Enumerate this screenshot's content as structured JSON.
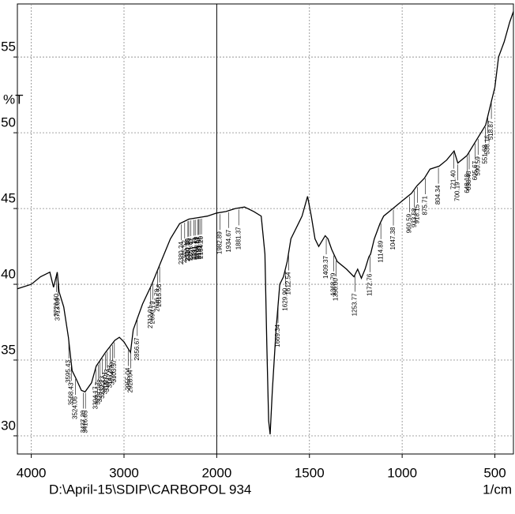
{
  "chart_data": {
    "type": "line",
    "y_label": "%T",
    "file_label": "D:\\April-15\\SDIP\\CARBOPOL 934",
    "x_unit_label": "1/cm",
    "xlim": [
      4150,
      400
    ],
    "x_scale_break": 2000,
    "x_scale_ratio": 2,
    "ylim": [
      28.8,
      58.5
    ],
    "xticks": [
      4000,
      3000,
      2000,
      1500,
      1000,
      500
    ],
    "yticks": [
      30,
      35,
      40,
      45,
      50,
      55
    ],
    "grid": true,
    "series": [
      {
        "color": "#000000",
        "x": [
          4150,
          4000,
          3900,
          3800,
          3760,
          3720,
          3700,
          3650,
          3600,
          3560,
          3520,
          3460,
          3420,
          3350,
          3300,
          3200,
          3100,
          3050,
          3000,
          2960,
          2930,
          2900,
          2800,
          2700,
          2600,
          2500,
          2400,
          2300,
          2200,
          2100,
          2000,
          1950,
          1900,
          1850,
          1800,
          1760,
          1740,
          1730,
          1720,
          1712,
          1700,
          1680,
          1660,
          1640,
          1620,
          1600,
          1580,
          1560,
          1540,
          1510,
          1490,
          1470,
          1450,
          1415,
          1400,
          1380,
          1350,
          1300,
          1260,
          1240,
          1220,
          1200,
          1180,
          1170,
          1150,
          1120,
          1100,
          1050,
          1000,
          950,
          920,
          880,
          850,
          800,
          760,
          720,
          700,
          650,
          600,
          550,
          520,
          500,
          480,
          450,
          420,
          400
        ],
        "values": [
          39.7,
          40.0,
          40.5,
          40.8,
          39.8,
          40.8,
          39.5,
          38.5,
          36.5,
          34.3,
          33.8,
          33.0,
          32.9,
          33.5,
          34.6,
          35.5,
          36.3,
          36.5,
          36.2,
          35.8,
          35.5,
          37.0,
          38.7,
          40.0,
          41.5,
          43.0,
          44.0,
          44.3,
          44.4,
          44.5,
          44.7,
          44.8,
          45.0,
          45.1,
          44.8,
          44.5,
          42.0,
          36.0,
          31.0,
          30.1,
          33.0,
          37.0,
          40.0,
          40.5,
          41.5,
          43.0,
          43.5,
          44.0,
          44.5,
          45.8,
          44.5,
          43.0,
          42.5,
          43.2,
          43.0,
          42.3,
          41.5,
          41.0,
          40.5,
          41.0,
          40.4,
          41.0,
          41.8,
          42.0,
          43.0,
          44.0,
          44.5,
          45.0,
          45.5,
          46.0,
          46.5,
          47.0,
          47.6,
          47.8,
          48.2,
          48.8,
          48.0,
          48.5,
          49.5,
          50.5,
          52.0,
          53.0,
          55.0,
          56.0,
          57.3,
          58.0
        ]
      }
    ],
    "peak_labels": [
      {
        "value": 3726.6,
        "label": "3726.60"
      },
      {
        "value": 3713.09,
        "label": "3713.09"
      },
      {
        "value": 3595.43,
        "label": "3595.43"
      },
      {
        "value": 3568.43,
        "label": "3568.43"
      },
      {
        "value": 3524.06,
        "label": "3524.06"
      },
      {
        "value": 3437.2,
        "label": "3437.20"
      },
      {
        "value": 3416.05,
        "label": "3416.05"
      },
      {
        "value": 3304.17,
        "label": "3304.17"
      },
      {
        "value": 3277.17,
        "label": "3277.17"
      },
      {
        "value": 3257.88,
        "label": "3257.88"
      },
      {
        "value": 3232.23,
        "label": "3232.23"
      },
      {
        "value": 3200.01,
        "label": "3200.01"
      },
      {
        "value": 3180.73,
        "label": "3180.73"
      },
      {
        "value": 3147.93,
        "label": "3147.93"
      },
      {
        "value": 3124.79,
        "label": "3124.79"
      },
      {
        "value": 3103.57,
        "label": "3103.57"
      },
      {
        "value": 2955.04,
        "label": "2955.04"
      },
      {
        "value": 2928.04,
        "label": "2928.04"
      },
      {
        "value": 2856.67,
        "label": "2856.67"
      },
      {
        "value": 2712.01,
        "label": "2712.01"
      },
      {
        "value": 2690.79,
        "label": "2690.79"
      },
      {
        "value": 2636.78,
        "label": "2636.78"
      },
      {
        "value": 2615.56,
        "label": "2615.56"
      },
      {
        "value": 2380.24,
        "label": "2380.24"
      },
      {
        "value": 2345.52,
        "label": "2345.52"
      },
      {
        "value": 2310.8,
        "label": "2310.80"
      },
      {
        "value": 2301.15,
        "label": "2301.15"
      },
      {
        "value": 2281.87,
        "label": "2281.87"
      },
      {
        "value": 2247.15,
        "label": "2247.15"
      },
      {
        "value": 2231.71,
        "label": "2231.71"
      },
      {
        "value": 2206.57,
        "label": "2206.57"
      },
      {
        "value": 2195.07,
        "label": "2195.07"
      },
      {
        "value": 2181.56,
        "label": "2181.56"
      },
      {
        "value": 2164.2,
        "label": "2164.20"
      },
      {
        "value": 1982.89,
        "label": "1982.89"
      },
      {
        "value": 1934.67,
        "label": "1934.67"
      },
      {
        "value": 1881.37,
        "label": "1881.37"
      },
      {
        "value": 1669.34,
        "label": "1669.34"
      },
      {
        "value": 1629.9,
        "label": "1629.90"
      },
      {
        "value": 1612.54,
        "label": "1612.54"
      },
      {
        "value": 1409.37,
        "label": "1409.37"
      },
      {
        "value": 1368.79,
        "label": "1368.79"
      },
      {
        "value": 1356.0,
        "label": "1356.00"
      },
      {
        "value": 1253.77,
        "label": "1253.77"
      },
      {
        "value": 1172.76,
        "label": "1172.76"
      },
      {
        "value": 1114.89,
        "label": "1114.89"
      },
      {
        "value": 1047.38,
        "label": "1047.38"
      },
      {
        "value": 960.59,
        "label": "960.59"
      },
      {
        "value": 933.58,
        "label": "933.58"
      },
      {
        "value": 918.15,
        "label": "918.15"
      },
      {
        "value": 875.71,
        "label": "875.71"
      },
      {
        "value": 804.34,
        "label": "804.34"
      },
      {
        "value": 721.4,
        "label": "721.40"
      },
      {
        "value": 700.19,
        "label": "700.19"
      },
      {
        "value": 648.1,
        "label": "648.10"
      },
      {
        "value": 638.46,
        "label": "638.46"
      },
      {
        "value": 605.67,
        "label": "605.67"
      },
      {
        "value": 590.59,
        "label": "590.59"
      },
      {
        "value": 551.68,
        "label": "551.68"
      },
      {
        "value": 538.16,
        "label": "538.16"
      },
      {
        "value": 518.87,
        "label": "518.87"
      }
    ]
  }
}
